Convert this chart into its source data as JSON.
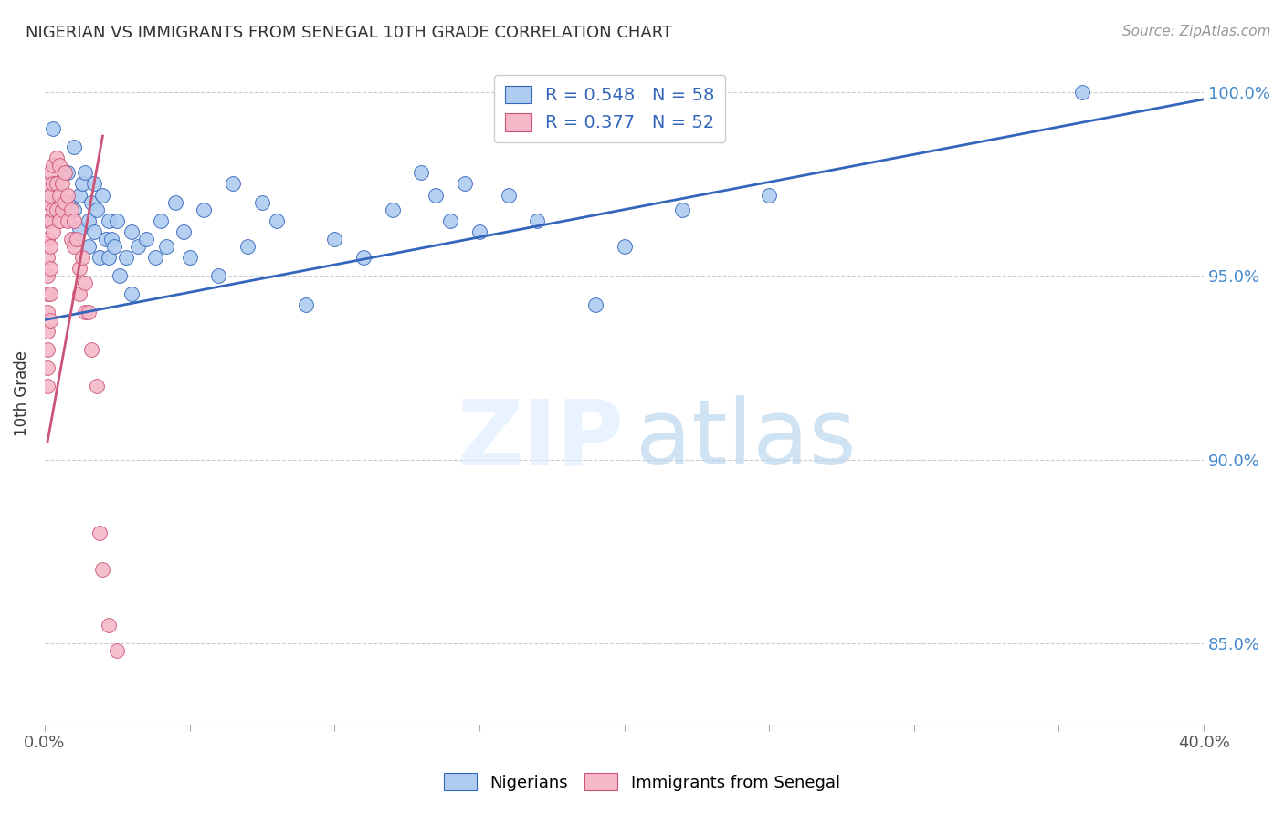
{
  "title": "NIGERIAN VS IMMIGRANTS FROM SENEGAL 10TH GRADE CORRELATION CHART",
  "source": "Source: ZipAtlas.com",
  "ylabel": "10th Grade",
  "xlim": [
    0.0,
    0.4
  ],
  "ylim": [
    0.828,
    1.008
  ],
  "x_ticks": [
    0.0,
    0.05,
    0.1,
    0.15,
    0.2,
    0.25,
    0.3,
    0.35,
    0.4
  ],
  "y_ticks": [
    0.85,
    0.9,
    0.95,
    1.0
  ],
  "legend_blue_label": "Nigerians",
  "legend_pink_label": "Immigrants from Senegal",
  "R_blue": 0.548,
  "N_blue": 58,
  "R_pink": 0.377,
  "N_pink": 52,
  "blue_color": "#aecbf0",
  "pink_color": "#f5b8c8",
  "blue_line_color": "#3366bb",
  "pink_line_color": "#cc5577",
  "blue_scatter": [
    [
      0.003,
      0.99
    ],
    [
      0.008,
      0.978
    ],
    [
      0.008,
      0.97
    ],
    [
      0.01,
      0.985
    ],
    [
      0.01,
      0.968
    ],
    [
      0.01,
      0.96
    ],
    [
      0.012,
      0.972
    ],
    [
      0.012,
      0.963
    ],
    [
      0.013,
      0.975
    ],
    [
      0.014,
      0.978
    ],
    [
      0.015,
      0.965
    ],
    [
      0.015,
      0.958
    ],
    [
      0.016,
      0.97
    ],
    [
      0.017,
      0.975
    ],
    [
      0.017,
      0.962
    ],
    [
      0.018,
      0.968
    ],
    [
      0.019,
      0.955
    ],
    [
      0.02,
      0.972
    ],
    [
      0.021,
      0.96
    ],
    [
      0.022,
      0.955
    ],
    [
      0.022,
      0.965
    ],
    [
      0.023,
      0.96
    ],
    [
      0.024,
      0.958
    ],
    [
      0.025,
      0.965
    ],
    [
      0.026,
      0.95
    ],
    [
      0.028,
      0.955
    ],
    [
      0.03,
      0.962
    ],
    [
      0.03,
      0.945
    ],
    [
      0.032,
      0.958
    ],
    [
      0.035,
      0.96
    ],
    [
      0.038,
      0.955
    ],
    [
      0.04,
      0.965
    ],
    [
      0.042,
      0.958
    ],
    [
      0.045,
      0.97
    ],
    [
      0.048,
      0.962
    ],
    [
      0.05,
      0.955
    ],
    [
      0.055,
      0.968
    ],
    [
      0.06,
      0.95
    ],
    [
      0.065,
      0.975
    ],
    [
      0.07,
      0.958
    ],
    [
      0.075,
      0.97
    ],
    [
      0.08,
      0.965
    ],
    [
      0.09,
      0.942
    ],
    [
      0.1,
      0.96
    ],
    [
      0.11,
      0.955
    ],
    [
      0.12,
      0.968
    ],
    [
      0.13,
      0.978
    ],
    [
      0.135,
      0.972
    ],
    [
      0.14,
      0.965
    ],
    [
      0.145,
      0.975
    ],
    [
      0.15,
      0.962
    ],
    [
      0.16,
      0.972
    ],
    [
      0.17,
      0.965
    ],
    [
      0.19,
      0.942
    ],
    [
      0.2,
      0.958
    ],
    [
      0.22,
      0.968
    ],
    [
      0.25,
      0.972
    ],
    [
      0.358,
      1.0
    ]
  ],
  "pink_scatter": [
    [
      0.001,
      0.975
    ],
    [
      0.001,
      0.97
    ],
    [
      0.001,
      0.965
    ],
    [
      0.001,
      0.96
    ],
    [
      0.001,
      0.955
    ],
    [
      0.001,
      0.95
    ],
    [
      0.001,
      0.945
    ],
    [
      0.001,
      0.94
    ],
    [
      0.001,
      0.935
    ],
    [
      0.001,
      0.93
    ],
    [
      0.001,
      0.925
    ],
    [
      0.001,
      0.92
    ],
    [
      0.002,
      0.978
    ],
    [
      0.002,
      0.972
    ],
    [
      0.002,
      0.965
    ],
    [
      0.002,
      0.958
    ],
    [
      0.002,
      0.952
    ],
    [
      0.002,
      0.945
    ],
    [
      0.002,
      0.938
    ],
    [
      0.003,
      0.98
    ],
    [
      0.003,
      0.975
    ],
    [
      0.003,
      0.968
    ],
    [
      0.003,
      0.962
    ],
    [
      0.004,
      0.982
    ],
    [
      0.004,
      0.975
    ],
    [
      0.004,
      0.968
    ],
    [
      0.005,
      0.98
    ],
    [
      0.005,
      0.972
    ],
    [
      0.005,
      0.965
    ],
    [
      0.006,
      0.975
    ],
    [
      0.006,
      0.968
    ],
    [
      0.007,
      0.978
    ],
    [
      0.007,
      0.97
    ],
    [
      0.008,
      0.972
    ],
    [
      0.008,
      0.965
    ],
    [
      0.009,
      0.968
    ],
    [
      0.009,
      0.96
    ],
    [
      0.01,
      0.965
    ],
    [
      0.01,
      0.958
    ],
    [
      0.011,
      0.96
    ],
    [
      0.012,
      0.952
    ],
    [
      0.012,
      0.945
    ],
    [
      0.013,
      0.955
    ],
    [
      0.014,
      0.948
    ],
    [
      0.014,
      0.94
    ],
    [
      0.015,
      0.94
    ],
    [
      0.016,
      0.93
    ],
    [
      0.018,
      0.92
    ],
    [
      0.019,
      0.88
    ],
    [
      0.02,
      0.87
    ],
    [
      0.022,
      0.855
    ],
    [
      0.025,
      0.848
    ]
  ],
  "blue_line_endpoints": [
    [
      0.0,
      0.938
    ],
    [
      0.4,
      0.998
    ]
  ],
  "pink_line_endpoints": [
    [
      0.001,
      0.905
    ],
    [
      0.02,
      0.988
    ]
  ],
  "background_color": "#ffffff",
  "grid_color": "#cccccc"
}
